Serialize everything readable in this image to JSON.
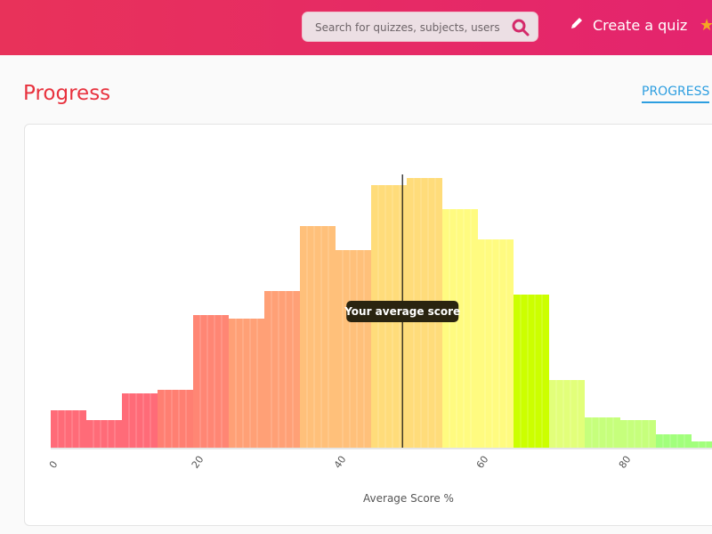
{
  "header": {
    "search": {
      "placeholder": "Search for quizzes, subjects, users",
      "value": ""
    },
    "create_label": "Create a quiz",
    "brand_color": "#e8325a"
  },
  "page": {
    "title": "Progress",
    "tab": "PROGRESS"
  },
  "chart_data": {
    "type": "bar",
    "xlabel": "Average Score %",
    "ylabel": "",
    "bin_width": 5,
    "bins_start": [
      0,
      5,
      10,
      15,
      20,
      25,
      30,
      35,
      40,
      45,
      50,
      55,
      60,
      65,
      70,
      75,
      80,
      85,
      90
    ],
    "values": [
      42,
      31,
      61,
      65,
      149,
      145,
      176,
      249,
      222,
      295,
      303,
      268,
      234,
      172,
      76,
      34,
      31,
      15,
      7
    ],
    "colors": [
      "#ff6b78",
      "#ff6b78",
      "#ff6b78",
      "#ff7f72",
      "#ff8674",
      "#ffa076",
      "#ffa076",
      "#ffc07a",
      "#ffc07a",
      "#ffdc7a",
      "#ffdc7a",
      "#fffb80",
      "#fffb80",
      "#ccff00",
      "#e2ff7a",
      "#c6ff7c",
      "#c6ff7c",
      "#a2ff7c",
      "#a2ff7c"
    ],
    "xlim": [
      0,
      100
    ],
    "xticks": [
      "0",
      "20",
      "40",
      "60",
      "80"
    ],
    "average_score": 49.4,
    "average_label": "Your average score",
    "grid": false
  }
}
